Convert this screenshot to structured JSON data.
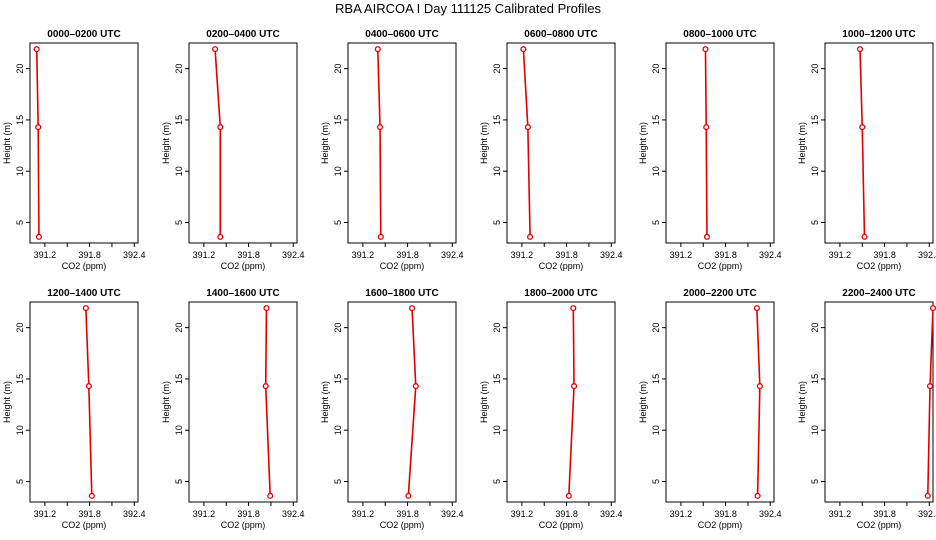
{
  "title": "RBA AIRCOA I  Day 111125  Calibrated Profiles",
  "chart_data": {
    "type": "line",
    "title": "RBA AIRCOA I  Day 111125  Calibrated Profiles",
    "xlabel": "CO2 (ppm)",
    "ylabel": "Height (m)",
    "xlim": [
      391.0,
      392.45
    ],
    "ylim": [
      3.0,
      22.5
    ],
    "xticks": [
      391.2,
      391.8,
      392.4
    ],
    "xtick_labels": [
      "391.2",
      "391.8",
      "392.4"
    ],
    "yticks": [
      5,
      10,
      15,
      20
    ],
    "ytick_labels": [
      "5",
      "10",
      "15",
      "20"
    ],
    "grid": false,
    "line_color": "#e00000",
    "panels": [
      {
        "title": "0000–0200 UTC",
        "heights": [
          21.9,
          14.3,
          3.6
        ],
        "values": [
          391.09,
          391.11,
          391.12
        ]
      },
      {
        "title": "0200–0400 UTC",
        "heights": [
          21.9,
          14.3,
          3.6
        ],
        "values": [
          391.35,
          391.42,
          391.42
        ]
      },
      {
        "title": "0400–0600 UTC",
        "heights": [
          21.9,
          14.3,
          3.6
        ],
        "values": [
          391.4,
          391.43,
          391.44
        ]
      },
      {
        "title": "0600–0800 UTC",
        "heights": [
          21.9,
          14.3,
          3.6
        ],
        "values": [
          391.22,
          391.28,
          391.31
        ]
      },
      {
        "title": "0800–1000 UTC",
        "heights": [
          21.9,
          14.3,
          3.6
        ],
        "values": [
          391.53,
          391.54,
          391.55
        ]
      },
      {
        "title": "1000–1200 UTC",
        "heights": [
          21.9,
          14.3,
          3.6
        ],
        "values": [
          391.47,
          391.5,
          391.53
        ]
      },
      {
        "title": "1200–1400 UTC",
        "heights": [
          21.9,
          14.3,
          3.6
        ],
        "values": [
          391.75,
          391.79,
          391.83
        ]
      },
      {
        "title": "1400–1600 UTC",
        "heights": [
          21.9,
          14.3,
          3.6
        ],
        "values": [
          392.04,
          392.03,
          392.09
        ]
      },
      {
        "title": "1600–1800 UTC",
        "heights": [
          21.9,
          14.3,
          3.6
        ],
        "values": [
          391.86,
          391.91,
          391.81
        ]
      },
      {
        "title": "1800–2000 UTC",
        "heights": [
          21.9,
          14.3,
          3.6
        ],
        "values": [
          391.89,
          391.9,
          391.83
        ]
      },
      {
        "title": "2000–2200 UTC",
        "heights": [
          21.9,
          14.3,
          3.6
        ],
        "values": [
          392.22,
          392.26,
          392.23
        ]
      },
      {
        "title": "2200–2400 UTC",
        "heights": [
          21.9,
          14.3,
          3.6
        ],
        "values": [
          392.45,
          392.41,
          392.38
        ]
      }
    ]
  }
}
